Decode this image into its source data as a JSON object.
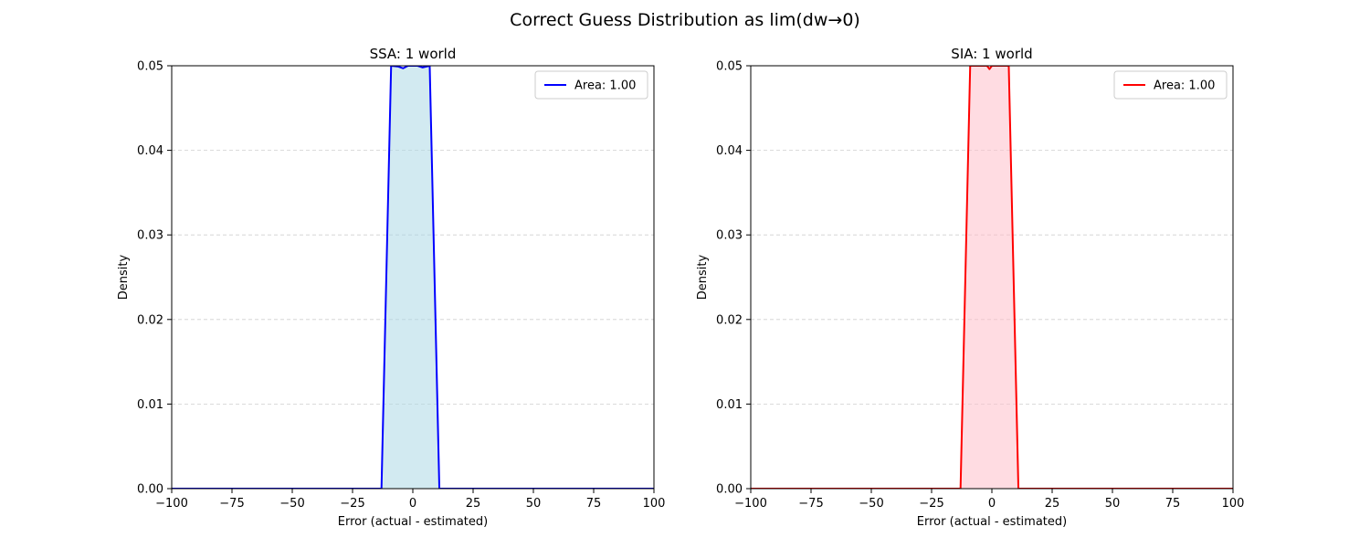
{
  "figure": {
    "suptitle": "Correct Guess Distribution as lim(dw→0)"
  },
  "chart_data": [
    {
      "type": "area",
      "title": "SSA: 1 world",
      "xlabel": "Error (actual - estimated)",
      "ylabel": "Density",
      "xlim": [
        -100,
        100
      ],
      "ylim": [
        0,
        0.05
      ],
      "xticks": [
        -100,
        -75,
        -50,
        -25,
        0,
        25,
        50,
        75,
        100
      ],
      "xtick_labels": [
        "−100",
        "−75",
        "−50",
        "−25",
        "0",
        "25",
        "50",
        "75",
        "100"
      ],
      "yticks": [
        0,
        0.01,
        0.02,
        0.03,
        0.04,
        0.05
      ],
      "ytick_labels": [
        "0.00",
        "0.01",
        "0.02",
        "0.03",
        "0.04",
        "0.05"
      ],
      "grid": "y-dashed",
      "legend_position": "top-right",
      "series": [
        {
          "name": "Area: 1.00",
          "color": "#0000ff",
          "fill": "#add8e6",
          "x": [
            -100,
            -13,
            -9,
            -6,
            -4,
            -2,
            2,
            4,
            7,
            11,
            100
          ],
          "y": [
            0,
            0,
            0.05,
            0.0499,
            0.0497,
            0.05,
            0.05,
            0.0498,
            0.05,
            0,
            0
          ]
        }
      ]
    },
    {
      "type": "area",
      "title": "SIA: 1 world",
      "xlabel": "Error (actual - estimated)",
      "ylabel": "Density",
      "xlim": [
        -100,
        100
      ],
      "ylim": [
        0,
        0.05
      ],
      "xticks": [
        -100,
        -75,
        -50,
        -25,
        0,
        25,
        50,
        75,
        100
      ],
      "xtick_labels": [
        "−100",
        "−75",
        "−50",
        "−25",
        "0",
        "25",
        "50",
        "75",
        "100"
      ],
      "yticks": [
        0,
        0.01,
        0.02,
        0.03,
        0.04,
        0.05
      ],
      "ytick_labels": [
        "0.00",
        "0.01",
        "0.02",
        "0.03",
        "0.04",
        "0.05"
      ],
      "grid": "y-dashed",
      "legend_position": "top-right",
      "series": [
        {
          "name": "Area: 1.00",
          "color": "#ff0000",
          "fill": "#ffc0cb",
          "x": [
            -100,
            -13,
            -9,
            -2,
            -1,
            0,
            7,
            11,
            100
          ],
          "y": [
            0,
            0,
            0.05,
            0.05,
            0.0496,
            0.05,
            0.05,
            0,
            0
          ]
        }
      ]
    }
  ]
}
